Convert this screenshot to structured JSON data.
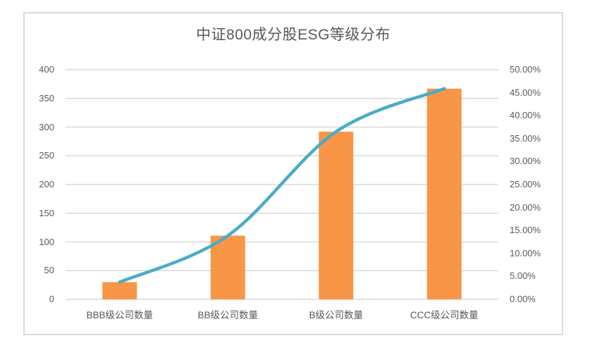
{
  "chart_data": {
    "type": "bar",
    "line_overlay": true,
    "title": "中证800成分股ESG等级分布",
    "categories": [
      "BBB级公司数量",
      "BB级公司数量",
      "B级公司数量",
      "CCC级公司数量"
    ],
    "series": [
      {
        "render": "bar",
        "axis": "left",
        "values": [
          30,
          111,
          292,
          367
        ]
      },
      {
        "render": "line",
        "axis": "right",
        "values_percent": [
          3.75,
          13.875,
          36.5,
          45.875
        ]
      }
    ],
    "left_axis": {
      "min": 0,
      "max": 400,
      "step": 50,
      "tick_labels": [
        "0",
        "50",
        "100",
        "150",
        "200",
        "250",
        "300",
        "350",
        "400"
      ]
    },
    "right_axis": {
      "min_percent": 0,
      "max_percent": 50,
      "step_percent": 5,
      "tick_labels": [
        "0.00%",
        "5.00%",
        "10.00%",
        "15.00%",
        "20.00%",
        "25.00%",
        "30.00%",
        "35.00%",
        "40.00%",
        "45.00%",
        "50.00%"
      ]
    },
    "grid": true,
    "legend": "none"
  },
  "colors": {
    "bar": "#F79646",
    "line": "#4BACC6",
    "grid": "#D9D9D9",
    "axis_text": "#595959",
    "title_text": "#595959",
    "frame_border": "#DBDBDB",
    "background": "#FFFFFF"
  }
}
